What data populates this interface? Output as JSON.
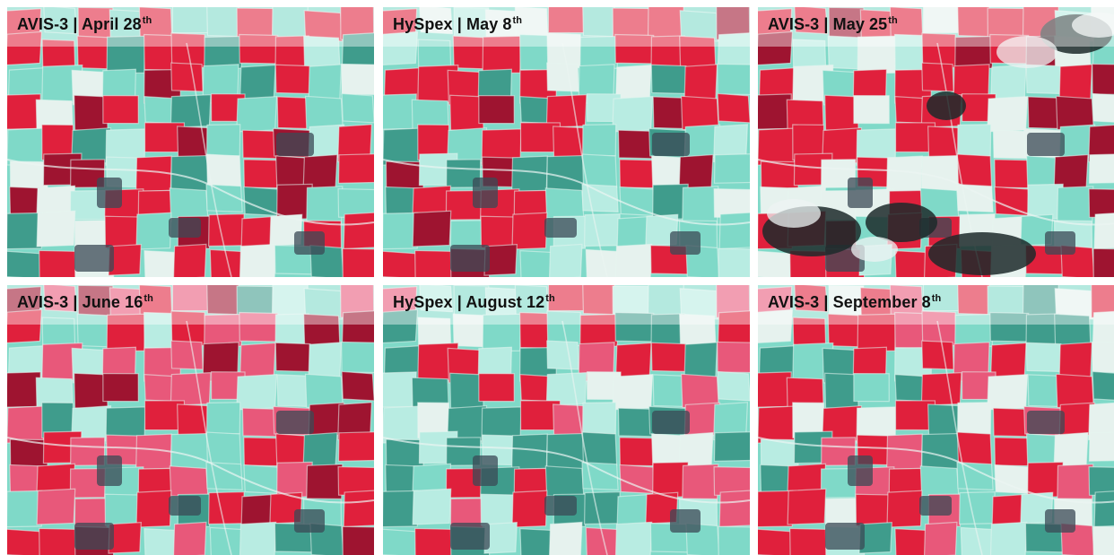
{
  "panels": [
    {
      "sensor": "AVIS-3",
      "sep": " | ",
      "date": "April 28",
      "suffix": "th",
      "scene": "early"
    },
    {
      "sensor": "HySpex",
      "sep": " | ",
      "date": "May 8",
      "suffix": "th",
      "scene": "early"
    },
    {
      "sensor": "AVIS-3",
      "sep": " | ",
      "date": "May 25",
      "suffix": "th",
      "scene": "cloudy"
    },
    {
      "sensor": "AVIS-3",
      "sep": " | ",
      "date": "June 16",
      "suffix": "th",
      "scene": "june"
    },
    {
      "sensor": "HySpex",
      "sep": " | ",
      "date": "August 12",
      "suffix": "th",
      "scene": "late"
    },
    {
      "sensor": "AVIS-3",
      "sep": " | ",
      "date": "September 8",
      "suffix": "th",
      "scene": "late"
    }
  ],
  "palette": {
    "red": "#e0203c",
    "dark_red": "#9e1430",
    "pink": "#e8587a",
    "cyan": "#7fd9c8",
    "pale_cyan": "#b8ece2",
    "teal": "#3f9c8c",
    "white": "#e6f2ee",
    "cloud_shadow": "#1c2a2a"
  }
}
